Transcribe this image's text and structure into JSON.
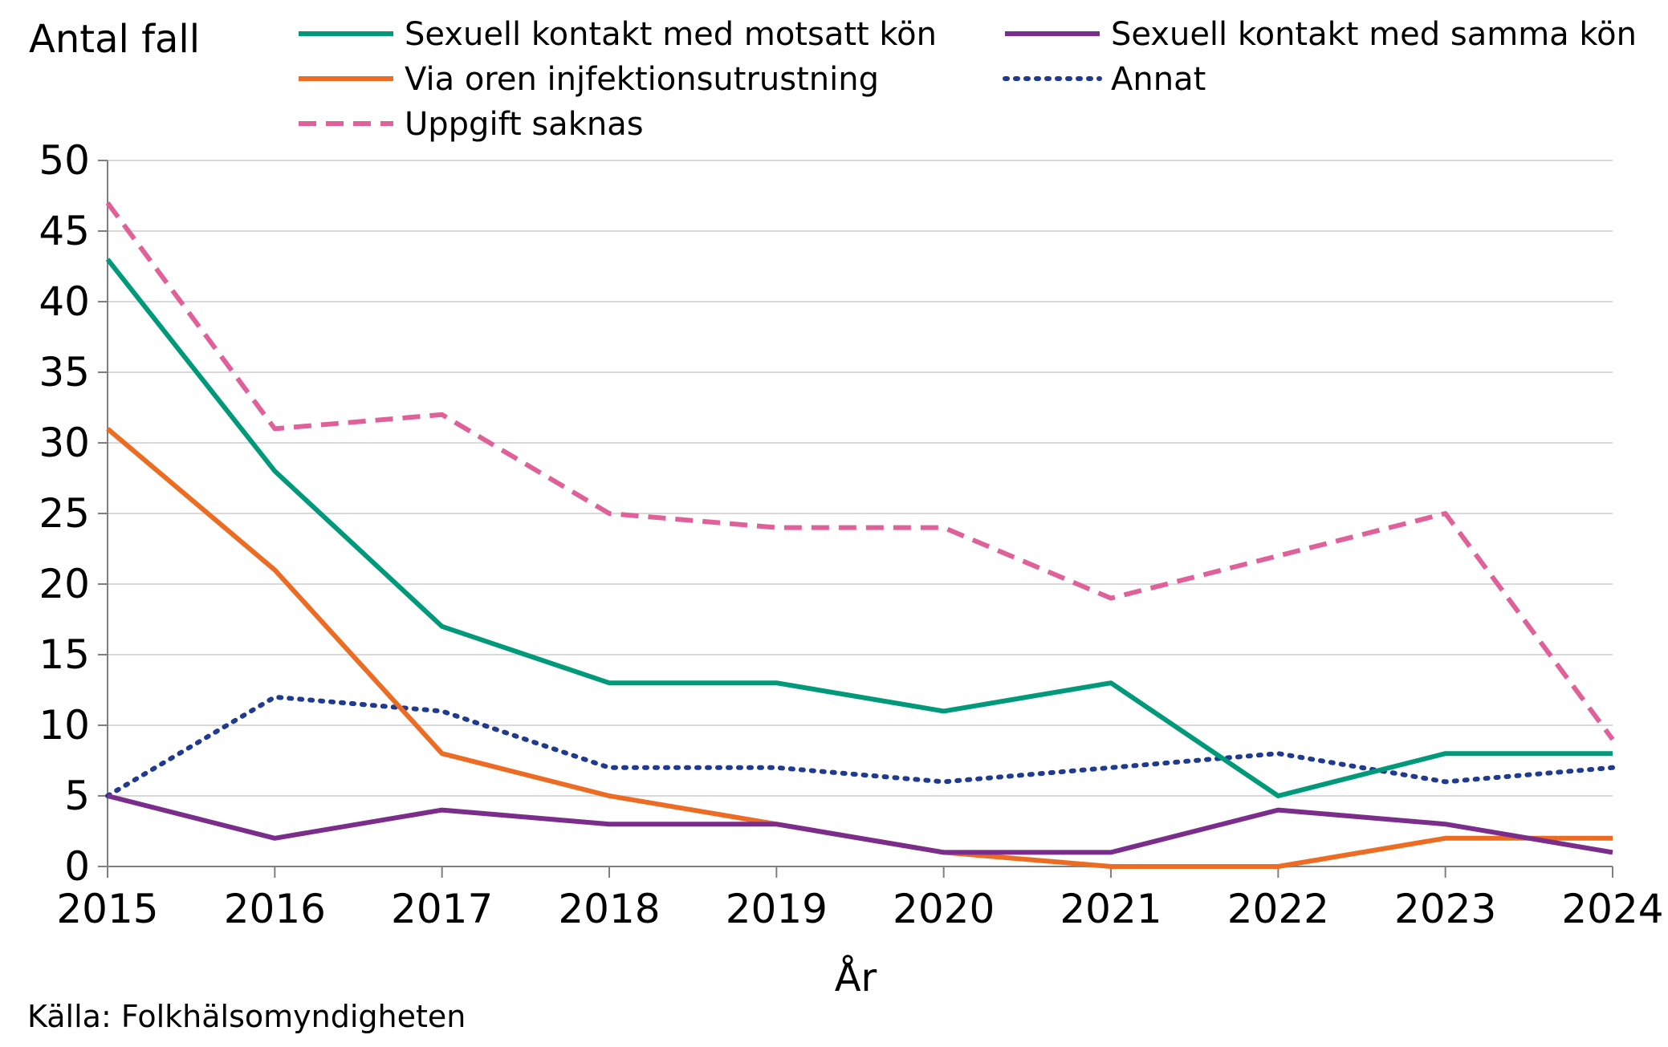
{
  "chart_data": {
    "type": "line",
    "title": "",
    "ylabel": "Antal fall",
    "xlabel": "År",
    "source": "Källa: Folkhälsomyndigheten",
    "ylim": [
      0,
      50
    ],
    "ytick_step": 5,
    "grid": true,
    "categories": [
      "2015",
      "2016",
      "2017",
      "2018",
      "2019",
      "2020",
      "2021",
      "2022",
      "2023",
      "2024"
    ],
    "series": [
      {
        "name": "Sexuell kontakt med motsatt kön",
        "color": "#00997a",
        "style": "solid",
        "values": [
          43,
          28,
          17,
          13,
          13,
          11,
          13,
          5,
          8,
          8
        ]
      },
      {
        "name": "Sexuell kontakt med samma kön",
        "color": "#7b2d8b",
        "style": "solid",
        "values": [
          5,
          2,
          4,
          3,
          3,
          1,
          1,
          4,
          3,
          1
        ]
      },
      {
        "name": "Via oren injfektionsutrustning",
        "color": "#ec6c24",
        "style": "solid",
        "values": [
          31,
          21,
          8,
          5,
          3,
          1,
          0,
          0,
          2,
          2
        ]
      },
      {
        "name": "Annat",
        "color": "#1f3a8f",
        "style": "dotted",
        "values": [
          5,
          12,
          11,
          7,
          7,
          6,
          7,
          8,
          6,
          7
        ]
      },
      {
        "name": "Uppgift saknas",
        "color": "#e0609a",
        "style": "dashed",
        "values": [
          47,
          31,
          32,
          25,
          24,
          24,
          19,
          22,
          25,
          9
        ]
      }
    ]
  }
}
